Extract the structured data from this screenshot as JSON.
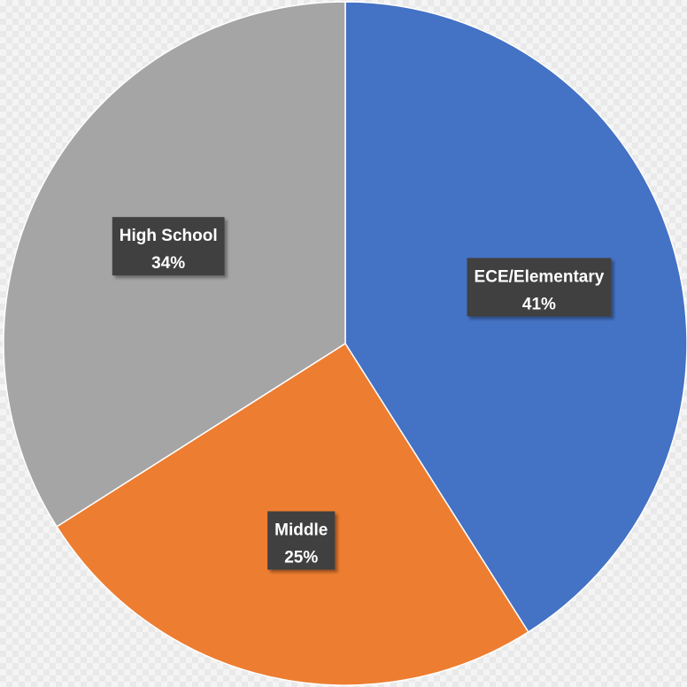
{
  "chart_data": {
    "type": "pie",
    "title": "",
    "slices": [
      {
        "label": "ECE/Elementary",
        "value": 41,
        "value_label": "41%",
        "color": "#4472C4"
      },
      {
        "label": "Middle",
        "value": 25,
        "value_label": "25%",
        "color": "#ED7D31"
      },
      {
        "label": "High School",
        "value": 34,
        "value_label": "34%",
        "color": "#A5A5A5"
      }
    ],
    "start_angle": "12 o'clock",
    "direction": "clockwise",
    "legend": "none",
    "data_labels": "category name and percentage, dark boxes inside slices"
  }
}
